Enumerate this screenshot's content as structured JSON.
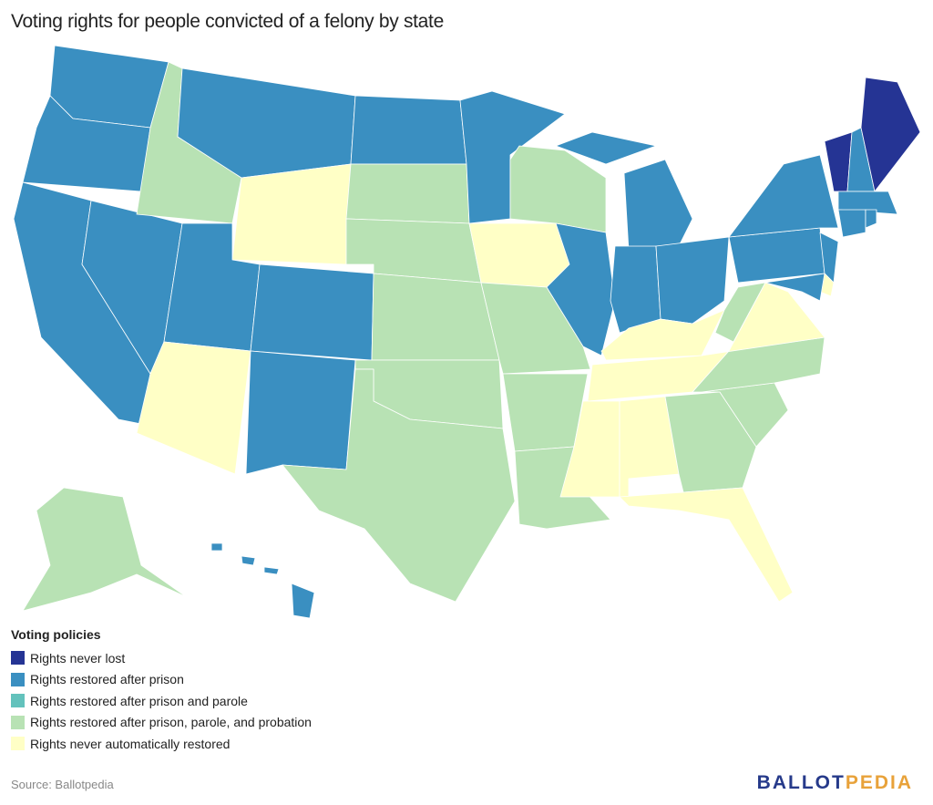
{
  "header": {
    "title": "Voting rights for people convicted of a felony by state"
  },
  "legend": {
    "title": "Voting policies",
    "items": [
      {
        "label": "Rights never lost",
        "color": "#253494"
      },
      {
        "label": "Rights restored after prison",
        "color": "#3a8fc1"
      },
      {
        "label": "Rights restored after prison and parole",
        "color": "#63c2bc"
      },
      {
        "label": "Rights restored after prison, parole, and probation",
        "color": "#b8e2b4"
      },
      {
        "label": "Rights never automatically restored",
        "color": "#ffffc6"
      }
    ]
  },
  "footer": {
    "source": "Source: Ballotpedia",
    "logo": {
      "first": "BALLOT",
      "second": "PEDIA"
    }
  }
}
